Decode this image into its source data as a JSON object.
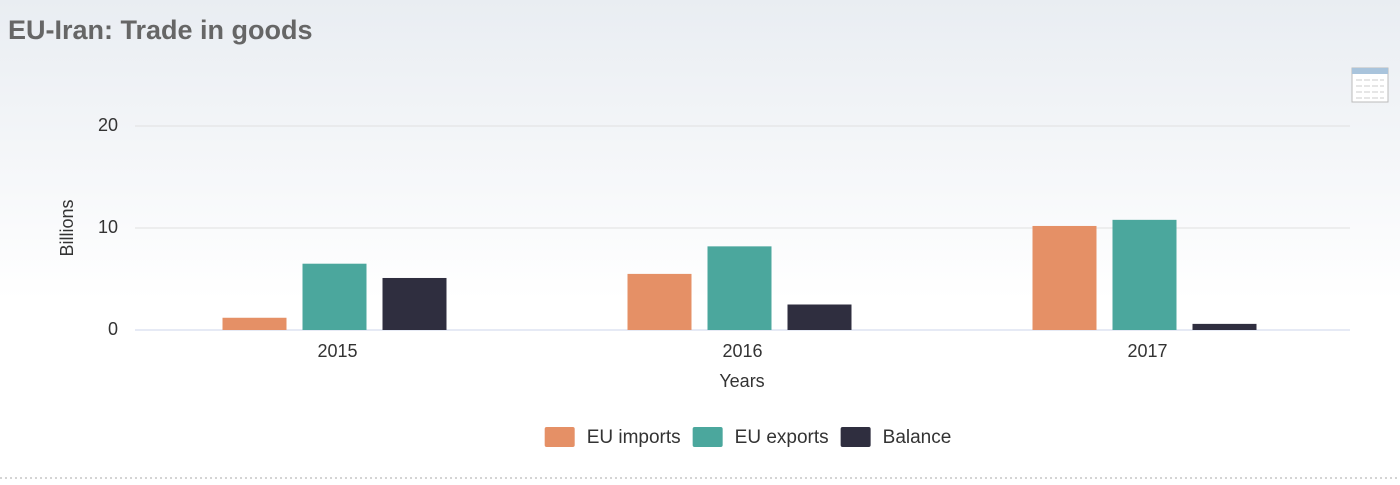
{
  "chart_data": {
    "type": "bar",
    "title": "EU-Iran: Trade in goods",
    "categories": [
      "2015",
      "2016",
      "2017"
    ],
    "series": [
      {
        "name": "EU imports",
        "color": "#e59066",
        "values": [
          1.2,
          5.5,
          10.2
        ]
      },
      {
        "name": "EU exports",
        "color": "#4ba79d",
        "values": [
          6.5,
          8.2,
          10.8
        ]
      },
      {
        "name": "Balance",
        "color": "#2f2e3f",
        "values": [
          5.1,
          2.5,
          0.6
        ]
      }
    ],
    "ylim": [
      0,
      20
    ],
    "yticks": [
      0,
      10,
      20
    ],
    "grid": true,
    "y_label": "Billions",
    "x_label": "Years",
    "legend": "bottom"
  }
}
